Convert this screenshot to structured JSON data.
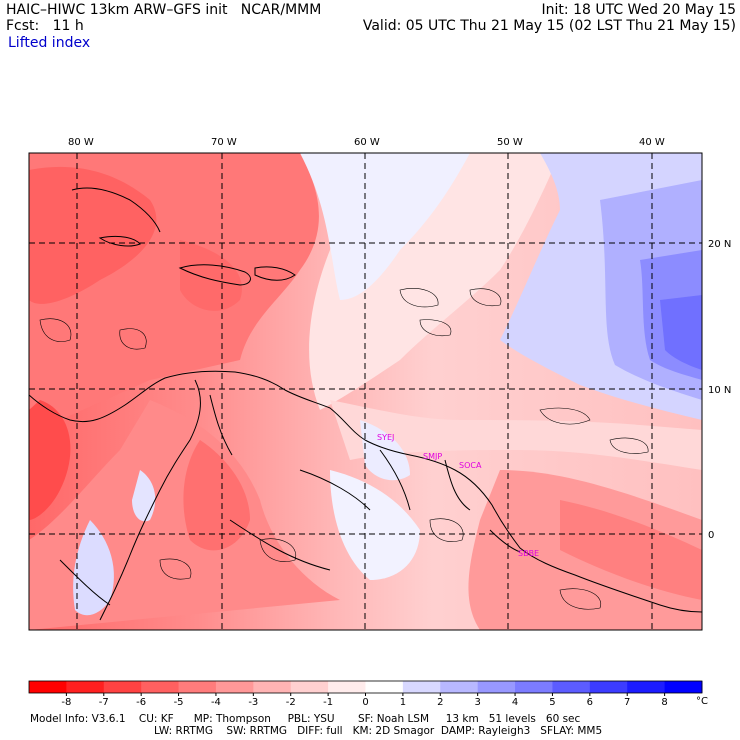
{
  "header": {
    "left_line1": "HAIC–HIWC 13km ARW–GFS init   NCAR/MMM",
    "left_line2": "Fcst:   11 h",
    "field_name": "Lifted index",
    "right_line1": "Init: 18 UTC Wed 20 May 15",
    "right_line2": "Valid: 05 UTC Thu 21 May 15 (02 LST Thu 21 May 15)"
  },
  "map": {
    "lon_labels": [
      "80 W",
      "70 W",
      "60 W",
      "50 W",
      "40 W"
    ],
    "lat_labels": [
      "20 N",
      "10 N",
      "0"
    ],
    "stations": [
      "SYEJ",
      "SMJP",
      "SOCA",
      "SBBE"
    ]
  },
  "colorbar": {
    "labels": [
      "-8",
      "-7",
      "-6",
      "-5",
      "-4",
      "-3",
      "-2",
      "-1",
      "0",
      "1",
      "2",
      "3",
      "4",
      "5",
      "6",
      "7",
      "8"
    ],
    "unit": "°C",
    "colors": [
      "#ff0000",
      "#ff2020",
      "#ff4242",
      "#ff6060",
      "#ff7c7c",
      "#ff9898",
      "#ffb4b4",
      "#ffd0d0",
      "#ffecec",
      "#ffffff",
      "#d8d8ff",
      "#b8b8ff",
      "#9898ff",
      "#7c7cff",
      "#5c5cff",
      "#3c3cff",
      "#1c1cff",
      "#0000ff"
    ]
  },
  "footer": {
    "line1": "Model Info: V3.6.1    CU: KF      MP: Thompson     PBL: YSU       SF: Noah LSM     13 km   51 levels   60 sec",
    "line2": "LW: RRTMG    SW: RRTMG   DIFF: full   KM: 2D Smagor  DAMP: Rayleigh3   SFLAY: MM5"
  }
}
